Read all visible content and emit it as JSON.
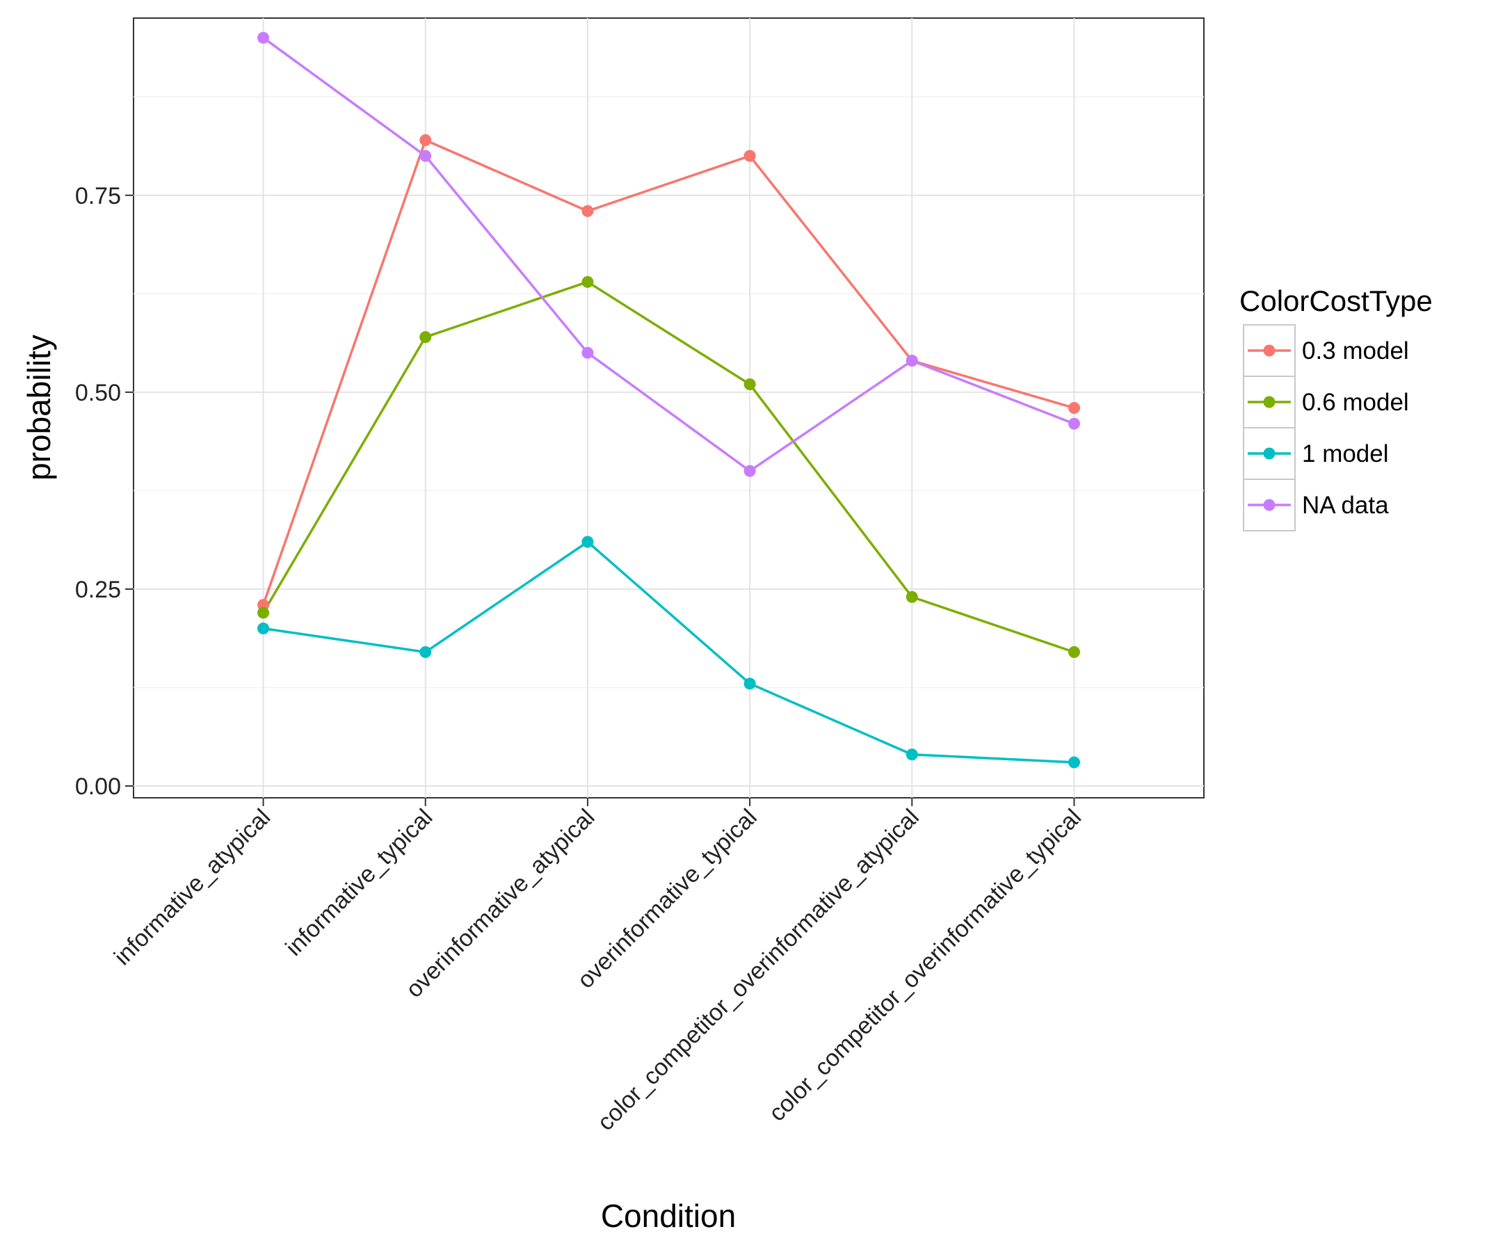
{
  "chart_data": {
    "type": "line",
    "xlabel": "Condition",
    "ylabel": "probability",
    "categories": [
      "informative_atypical",
      "informative_typical",
      "overinformative_atypical",
      "overinformative_typical",
      "color_competitor_overinformative_atypical",
      "color_competitor_overinformative_typical"
    ],
    "yticks": [
      "0.00",
      "0.25",
      "0.50",
      "0.75"
    ],
    "ylim": [
      -0.015,
      0.975
    ],
    "grid": true,
    "legend": {
      "title": "ColorCostType",
      "placement": "right"
    },
    "series": [
      {
        "name": "0.3 model",
        "color": "#F8766D",
        "values": [
          0.23,
          0.82,
          0.73,
          0.8,
          0.54,
          0.48
        ]
      },
      {
        "name": "0.6 model",
        "color": "#7CAE00",
        "values": [
          0.22,
          0.57,
          0.64,
          0.51,
          0.24,
          0.17
        ]
      },
      {
        "name": "1 model",
        "color": "#00BFC4",
        "values": [
          0.2,
          0.17,
          0.31,
          0.13,
          0.04,
          0.03
        ]
      },
      {
        "name": "NA data",
        "color": "#C77CFF",
        "values": [
          0.95,
          0.8,
          0.55,
          0.4,
          0.54,
          0.46
        ]
      }
    ]
  }
}
